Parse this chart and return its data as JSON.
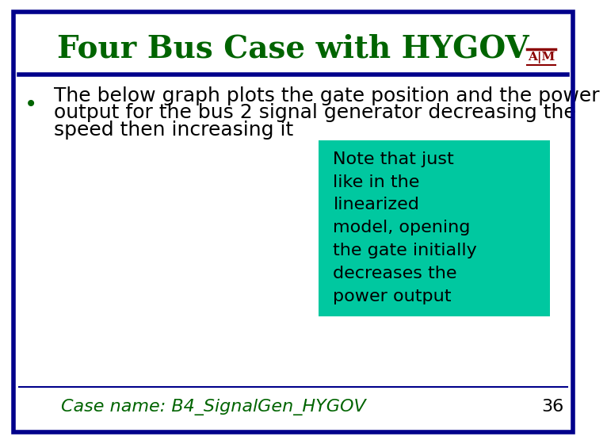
{
  "title": "Four Bus Case with HYGOV",
  "title_color": "#006400",
  "title_fontsize": 28,
  "border_color": "#00008B",
  "border_width": 4,
  "bg_color": "#FFFFFF",
  "bullet_text_line1": "The below graph plots the gate position and the power",
  "bullet_text_line2": "output for the bus 2 signal generator decreasing the",
  "bullet_text_line3": "speed then increasing it",
  "bullet_color": "#006400",
  "body_text_color": "#000000",
  "body_fontsize": 18,
  "note_text": "Note that just\nlike in the\nlinearized\nmodel, opening\nthe gate initially\ndecreases the\npower output",
  "note_bg_color": "#00C8A0",
  "note_text_color": "#000000",
  "note_fontsize": 16,
  "footer_text": "Case name: B4_SignalGen_HYGOV",
  "footer_color": "#006400",
  "footer_fontsize": 16,
  "page_number": "36",
  "page_number_color": "#000000",
  "page_number_fontsize": 16
}
